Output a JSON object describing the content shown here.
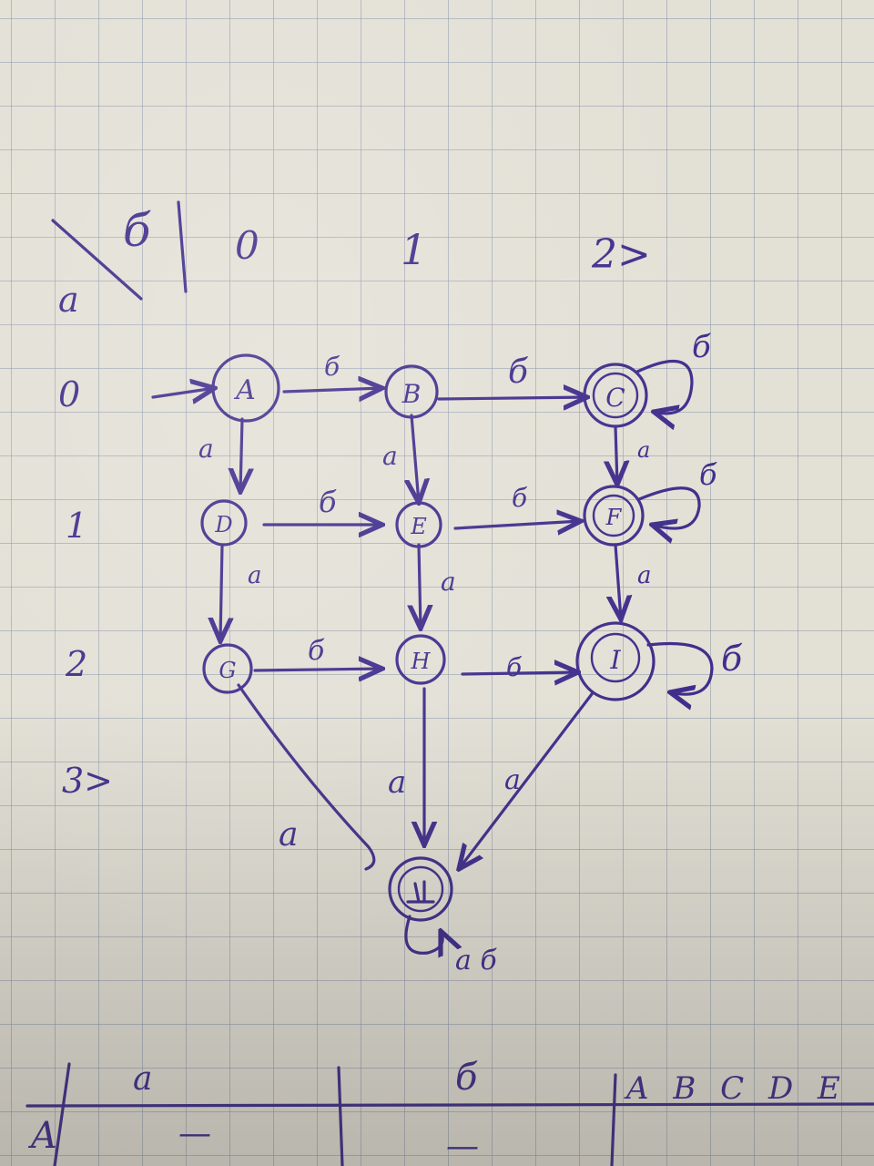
{
  "header": {
    "corner_top": "б",
    "corner_bottom": "а",
    "columns": [
      "0",
      "1",
      "2>"
    ]
  },
  "rows": [
    "0",
    "1",
    "2",
    "3>"
  ],
  "states": [
    {
      "id": "A",
      "label": "A",
      "initial": true,
      "accepting": false
    },
    {
      "id": "B",
      "label": "B",
      "accepting": false
    },
    {
      "id": "C",
      "label": "C",
      "accepting": true
    },
    {
      "id": "D",
      "label": "D",
      "accepting": false
    },
    {
      "id": "E",
      "label": "E",
      "accepting": false
    },
    {
      "id": "F",
      "label": "F",
      "accepting": true
    },
    {
      "id": "G",
      "label": "G",
      "accepting": false
    },
    {
      "id": "H",
      "label": "H",
      "accepting": false
    },
    {
      "id": "I",
      "label": "I",
      "accepting": true
    },
    {
      "id": "K",
      "label": "",
      "accepting": true
    }
  ],
  "transitions": [
    {
      "from": "A",
      "to": "B",
      "label": "б"
    },
    {
      "from": "B",
      "to": "C",
      "label": "б"
    },
    {
      "from": "C",
      "to": "C",
      "label": "б"
    },
    {
      "from": "A",
      "to": "D",
      "label": "а"
    },
    {
      "from": "B",
      "to": "E",
      "label": "а"
    },
    {
      "from": "C",
      "to": "F",
      "label": "а"
    },
    {
      "from": "D",
      "to": "E",
      "label": "б"
    },
    {
      "from": "E",
      "to": "F",
      "label": "б"
    },
    {
      "from": "F",
      "to": "F",
      "label": "б"
    },
    {
      "from": "D",
      "to": "G",
      "label": "а"
    },
    {
      "from": "E",
      "to": "H",
      "label": "а"
    },
    {
      "from": "F",
      "to": "I",
      "label": "а"
    },
    {
      "from": "G",
      "to": "H",
      "label": "б"
    },
    {
      "from": "H",
      "to": "I",
      "label": "б"
    },
    {
      "from": "I",
      "to": "I",
      "label": "б"
    },
    {
      "from": "G",
      "to": "K",
      "label": "а"
    },
    {
      "from": "H",
      "to": "K",
      "label": "а"
    },
    {
      "from": "I",
      "to": "K",
      "label": "а"
    },
    {
      "from": "K",
      "to": "K",
      "label": "а б"
    }
  ],
  "table": {
    "row_label": "A",
    "col_a": "а",
    "col_b": "б",
    "cell_a": "—",
    "cell_b": "—",
    "states_header": "A B C D E"
  }
}
